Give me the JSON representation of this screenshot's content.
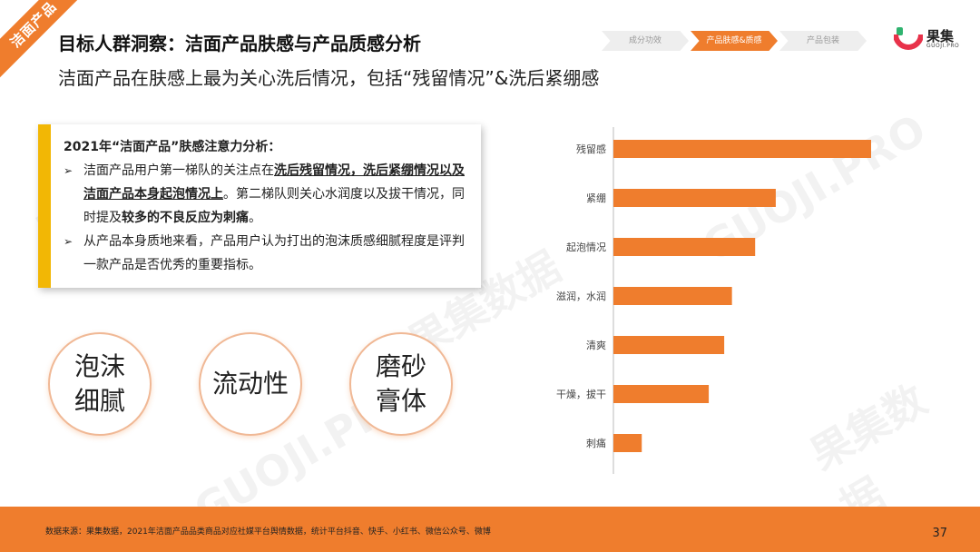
{
  "corner_tag": "洁面产品",
  "title": "目标人群洞察：洁面产品肤感与产品质感分析",
  "subtitle": "洁面产品在肤感上最为关心洗后情况，包括“残留情况”&洗后紧绷感",
  "breadcrumb": [
    "成分功效",
    "产品肤感&质感",
    "产品包装"
  ],
  "logo": {
    "name": "果集",
    "sub": "GUOJI.PRO"
  },
  "watermark": {
    "cn": "果集数据",
    "en": "GUOJI.PRO"
  },
  "analysis": {
    "heading": "2021年“洁面产品”肤感注意力分析：",
    "bullet_mark": "➢",
    "b1_p1": "洁面产品用户第一梯队的关注点在",
    "b1_u1": "洗后残留情况，洗后紧绷情况以及洁面产品本身起泡情况上",
    "b1_p2": "。第二梯队则关心水润度以及拔干情况，同时提及",
    "b1_b1": "较多的不良反应为刺痛",
    "b1_p3": "。",
    "b2": "从产品本身质地来看，产品用户认为打出的泡沫质感细腻程度是评判一款产品是否优秀的重要指标。"
  },
  "circles": [
    {
      "line1": "泡沫",
      "line2": "细腻"
    },
    {
      "line1": "流动性",
      "line2": ""
    },
    {
      "line1": "磨砂",
      "line2": "膏体"
    }
  ],
  "chart_data": {
    "type": "bar",
    "orientation": "horizontal",
    "categories": [
      "残留感",
      "紧绷",
      "起泡情况",
      "滋润，水润",
      "清爽",
      "干燥，拔干",
      "刺痛"
    ],
    "values": [
      100,
      63,
      55,
      46,
      43,
      37,
      11
    ],
    "color": "#ef7d2d",
    "grid": false
  },
  "footer": {
    "source": "数据来源：果集数据，2021年洁面产品品类商品对应社媒平台舆情数据，统计平台抖音、快手、小红书、微信公众号、微博",
    "page": "37"
  }
}
